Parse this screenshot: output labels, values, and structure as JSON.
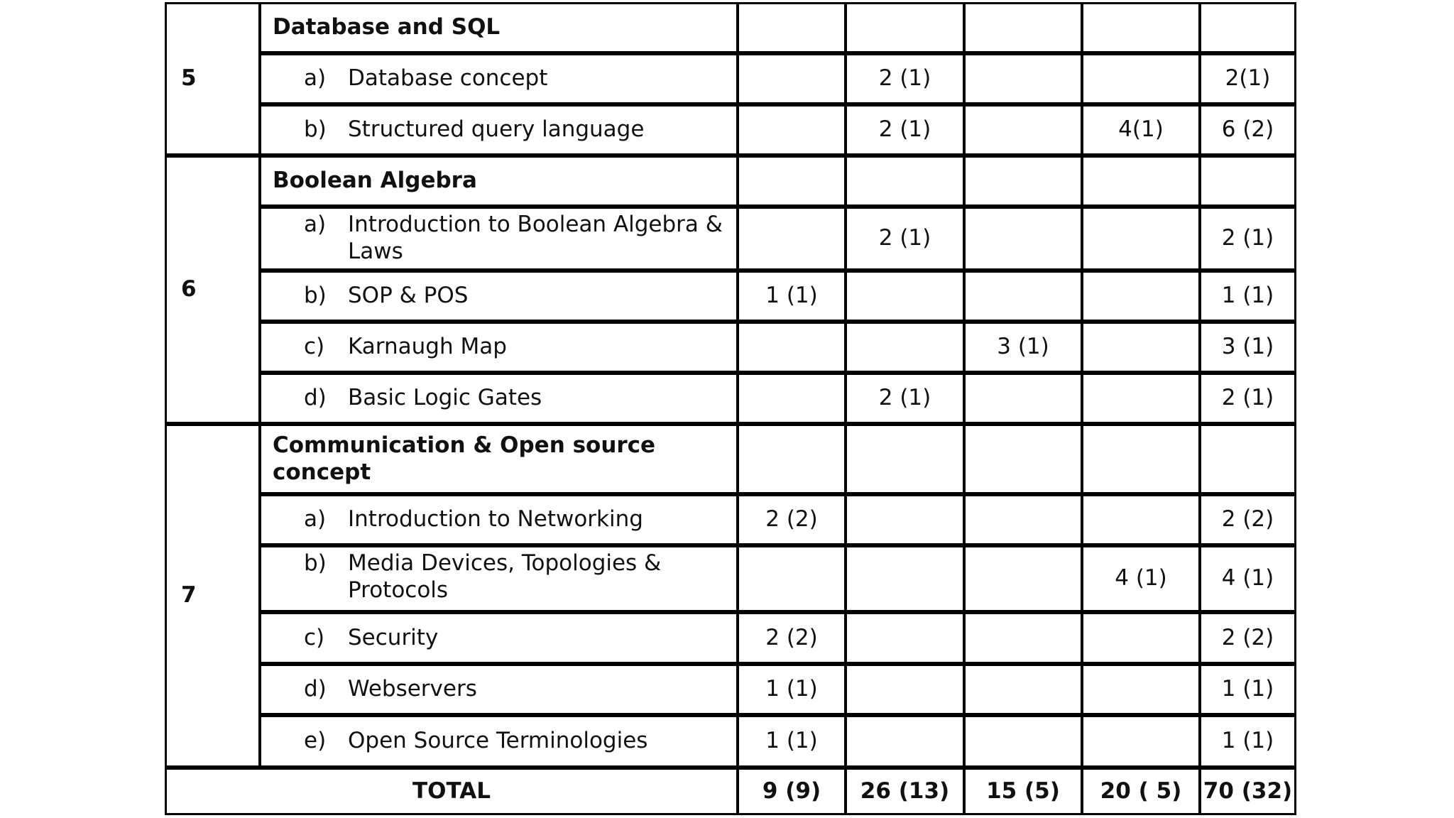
{
  "table": {
    "sections": [
      {
        "number": "5",
        "heading": "Database and SQL",
        "items": [
          {
            "marker": "a)",
            "topic": "Database concept",
            "cells": [
              null,
              "2 (1)",
              null,
              null,
              "2(1)"
            ]
          },
          {
            "marker": "b)",
            "topic": "Structured query language",
            "cells": [
              null,
              "2 (1)",
              null,
              "4(1)",
              "6 (2)"
            ]
          }
        ]
      },
      {
        "number": "6",
        "heading": "Boolean Algebra",
        "items": [
          {
            "marker": "a)",
            "topic": "Introduction to Boolean Algebra & Laws",
            "cells": [
              null,
              "2 (1)",
              null,
              null,
              "2 (1)"
            ]
          },
          {
            "marker": "b)",
            "topic": "SOP & POS",
            "cells": [
              "1 (1)",
              null,
              null,
              null,
              "1 (1)"
            ]
          },
          {
            "marker": "c)",
            "topic": "Karnaugh Map",
            "cells": [
              null,
              null,
              "3 (1)",
              null,
              "3 (1)"
            ]
          },
          {
            "marker": "d)",
            "topic": "Basic Logic Gates",
            "cells": [
              null,
              "2 (1)",
              null,
              null,
              "2 (1)"
            ]
          }
        ]
      },
      {
        "number": "7",
        "heading": "Communication & Open source concept",
        "items": [
          {
            "marker": "a)",
            "topic": "Introduction to Networking",
            "cells": [
              "2 (2)",
              null,
              null,
              null,
              "2 (2)"
            ]
          },
          {
            "marker": "b)",
            "topic": "Media Devices, Topologies & Protocols",
            "cells": [
              null,
              null,
              null,
              "4 (1)",
              "4 (1)"
            ]
          },
          {
            "marker": "c)",
            "topic": "Security",
            "cells": [
              "2 (2)",
              null,
              null,
              null,
              "2 (2)"
            ]
          },
          {
            "marker": "d)",
            "topic": "Webservers",
            "cells": [
              "1 (1)",
              null,
              null,
              null,
              "1 (1)"
            ]
          },
          {
            "marker": "e)",
            "topic": "Open Source Terminologies",
            "cells": [
              "1 (1)",
              null,
              null,
              null,
              "1 (1)"
            ]
          }
        ]
      }
    ],
    "total": {
      "label": "TOTAL",
      "cells": [
        "9 (9)",
        "26 (13)",
        "15 (5)",
        "20 ( 5)",
        "70 (32)"
      ]
    }
  }
}
